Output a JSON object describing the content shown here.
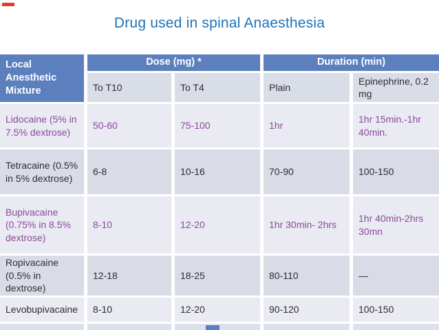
{
  "colors": {
    "canvas": "#ffffff",
    "accent_red": "#e8392b",
    "title_blue": "#1e72b7",
    "header_blue": "#5b80bd",
    "subheader_bg": "#d9dde8",
    "band_light": "#e9eaf2",
    "band_dark": "#d9dce7",
    "ink_dark": "#2f2f2f",
    "ink_purple": "#8b4a9c",
    "bottom_strip": "#dde1ec",
    "bottom_box": "#5b7fbd"
  },
  "slide": {
    "title": "Drug used in spinal Anaesthesia"
  },
  "table": {
    "corner_header": "Local Anesthetic Mixture",
    "group_headers": {
      "dose": "Dose (mg) *",
      "duration": "Duration (min)"
    },
    "sub_headers": {
      "to_t10": "To T10",
      "to_t4": "To T4",
      "plain": "Plain",
      "epinephrine": "Epinephrine, 0.2 mg"
    },
    "rows": [
      {
        "drug": "Lidocaine (5% in 7.5% dextrose)",
        "to_t10": "50-60",
        "to_t4": "75-100",
        "plain": "1hr",
        "epinephrine": "1hr 15min.-1hr 40min.",
        "emphasis": "purple",
        "band": "light"
      },
      {
        "drug": "Tetracaine (0.5% in 5% dextrose)",
        "to_t10": "6-8",
        "to_t4": "10-16",
        "plain": "70-90",
        "epinephrine": "100-150",
        "emphasis": "dark",
        "band": "dark"
      },
      {
        "drug": "Bupivacaine (0.75% in 8.5% dextrose)",
        "to_t10": "8-10",
        "to_t4": "12-20",
        "plain": "1hr 30min- 2hrs",
        "epinephrine": "1hr 40min-2hrs 30mn",
        "emphasis": "purple",
        "band": "light"
      },
      {
        "drug": "Ropivacaine (0.5% in dextrose)",
        "to_t10": "12-18",
        "to_t4": "18-25",
        "plain": "80-110",
        "epinephrine": "—",
        "emphasis": "dark",
        "band": "dark"
      },
      {
        "drug": "Levobupivacaine",
        "to_t10": "8-10",
        "to_t4": "12-20",
        "plain": "90-120",
        "epinephrine": "100-150",
        "emphasis": "dark",
        "band": "light"
      }
    ]
  }
}
